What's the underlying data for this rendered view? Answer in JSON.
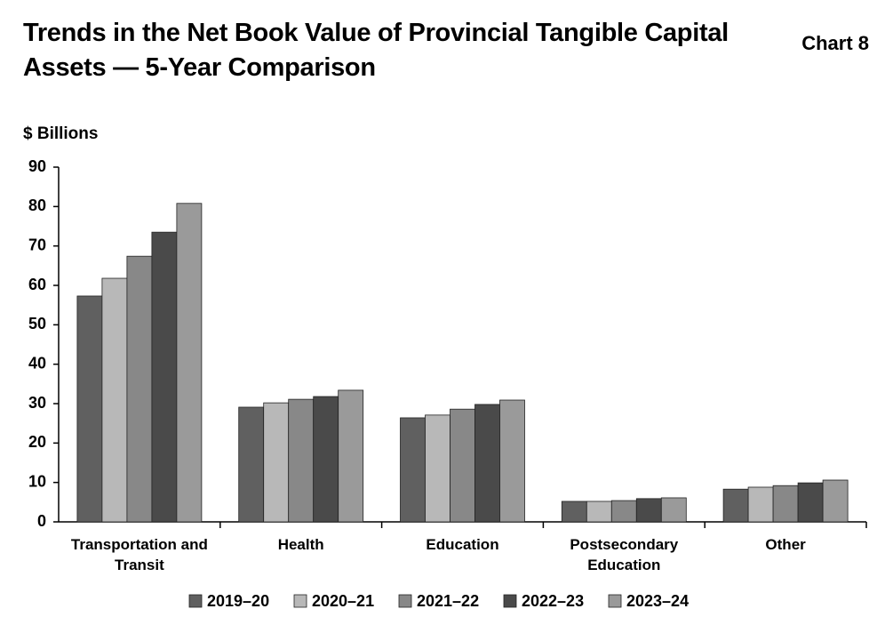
{
  "chart_data": {
    "type": "bar",
    "title": "Trends in the Net Book Value of Provincial Tangible Capital Assets — 5-Year Comparison",
    "chart_label": "Chart 8",
    "y_axis_label": "$ Billions",
    "categories": [
      "Transportation and Transit",
      "Health",
      "Education",
      "Postsecondary Education",
      "Other"
    ],
    "series": [
      {
        "name": "2019–20",
        "color": "#606060",
        "values": [
          57.3,
          29.1,
          26.4,
          5.2,
          8.3
        ]
      },
      {
        "name": "2020–21",
        "color": "#b8b8b8",
        "values": [
          61.8,
          30.2,
          27.1,
          5.2,
          8.8
        ]
      },
      {
        "name": "2021–22",
        "color": "#888888",
        "values": [
          67.4,
          31.1,
          28.6,
          5.4,
          9.2
        ]
      },
      {
        "name": "2022–23",
        "color": "#4a4a4a",
        "values": [
          73.5,
          31.8,
          29.8,
          5.9,
          9.9
        ]
      },
      {
        "name": "2023–24",
        "color": "#9a9a9a",
        "values": [
          80.8,
          33.4,
          30.9,
          6.1,
          10.6
        ]
      }
    ],
    "ylim": [
      0,
      90
    ],
    "yticks": [
      0,
      10,
      20,
      30,
      40,
      50,
      60,
      70,
      80,
      90
    ],
    "grid": false,
    "legend": "bottom"
  }
}
